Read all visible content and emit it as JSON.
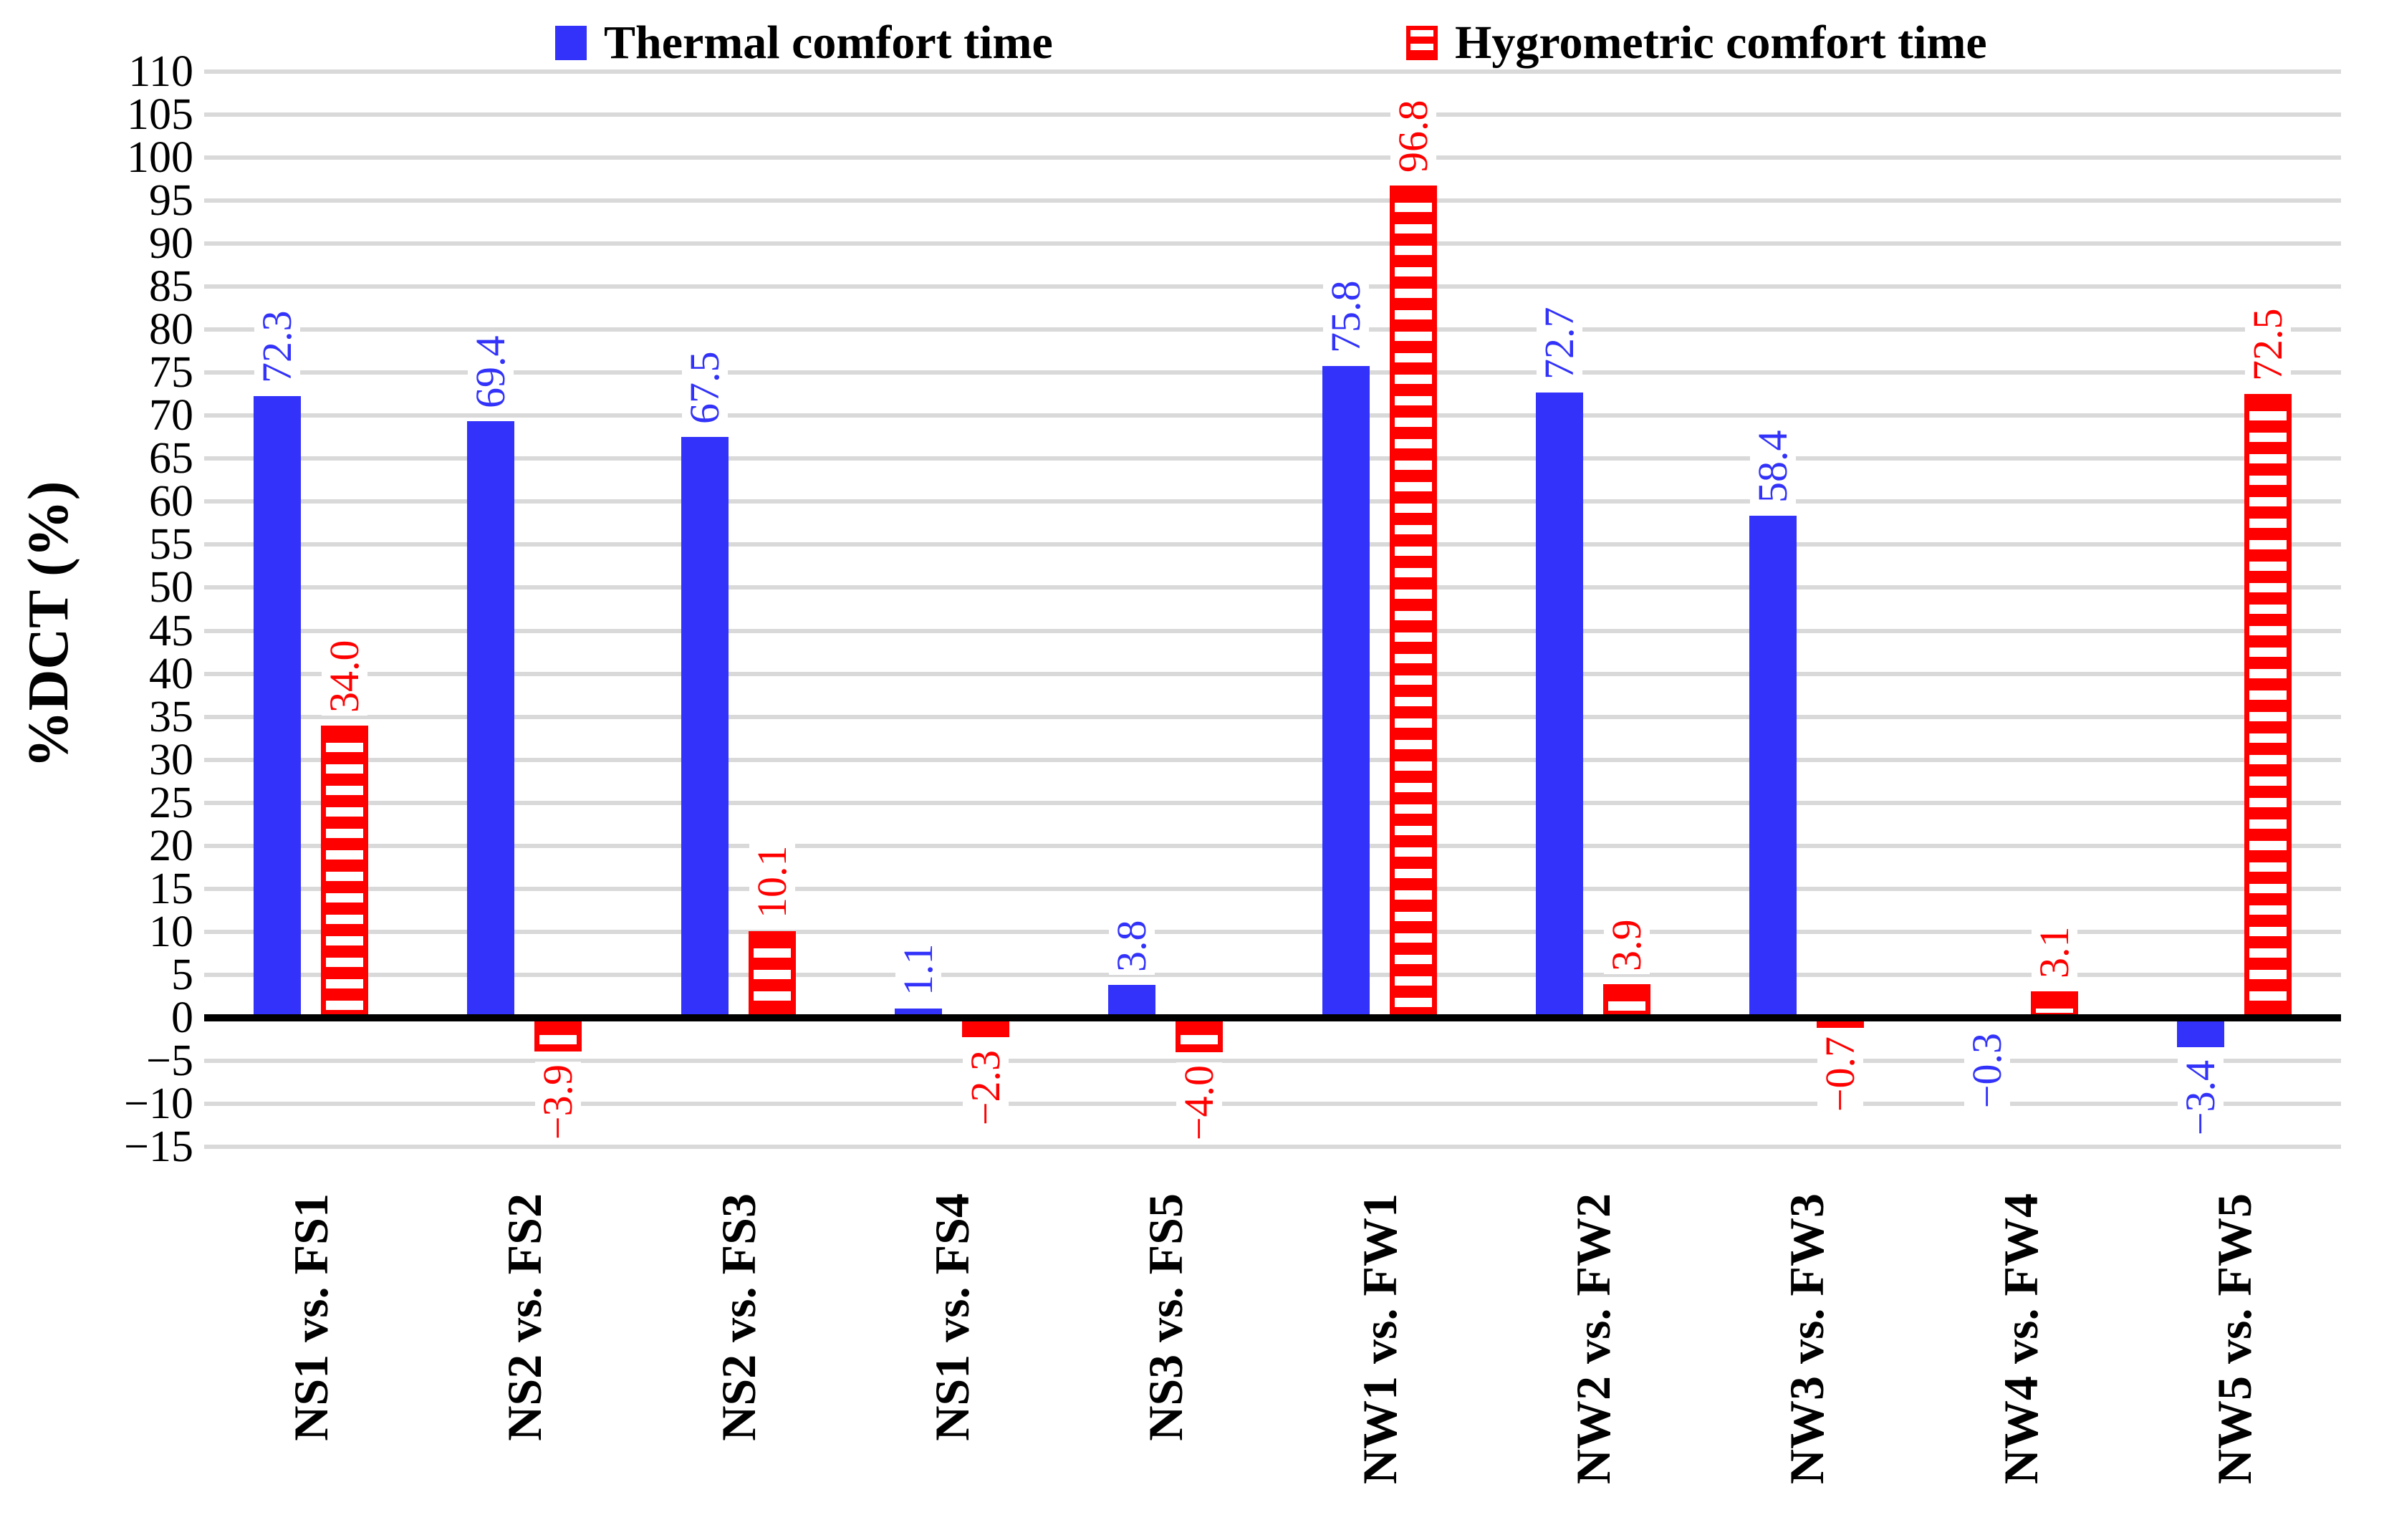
{
  "chart_data": {
    "type": "bar",
    "title": "",
    "xlabel": "",
    "ylabel": "%DCT (%)",
    "ylim": [
      -15,
      110
    ],
    "ytick_step": 5,
    "grid": true,
    "legend_position": "top",
    "background_color": "#ffffff",
    "grid_color": "#d9d9d9",
    "axis_color": "#000000",
    "tick_label_color": "#000000",
    "categories": [
      "NS1 vs. FS1",
      "NS2 vs. FS2",
      "NS2 vs. FS3",
      "NS1 vs. FS4",
      "NS3 vs. FS5",
      "NW1 vs. FW1",
      "NW2 vs. FW2",
      "NW3 vs. FW3",
      "NW4 vs. FW4",
      "NW5 vs. FW5"
    ],
    "series": [
      {
        "name": "Thermal comfort time",
        "color": "#3232fa",
        "pattern": "solid",
        "values": [
          72.3,
          69.4,
          67.5,
          1.1,
          3.8,
          75.8,
          72.7,
          58.4,
          -0.3,
          -3.4
        ]
      },
      {
        "name": "Hygrometric comfort time",
        "color": "#ff0000",
        "pattern": "horizontal-stripes",
        "values": [
          34.0,
          -3.9,
          10.1,
          -2.3,
          -4.0,
          96.8,
          3.9,
          -0.7,
          3.1,
          72.5
        ]
      }
    ]
  }
}
